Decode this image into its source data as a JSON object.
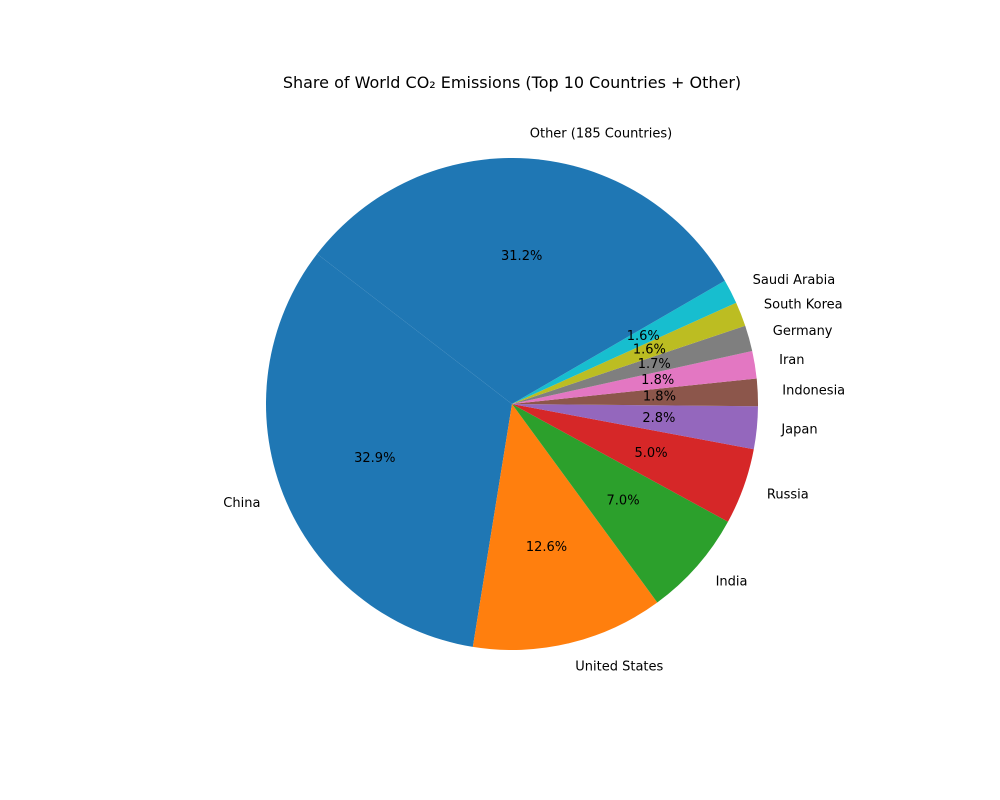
{
  "chart_data": {
    "type": "pie",
    "title": "Share of World CO₂ Emissions (Top 10 Countries + Other)",
    "start_angle_deg": 142.4,
    "direction": "counterclockwise",
    "slices": [
      {
        "label": "China",
        "value": 32.9,
        "pct_label": "32.9%",
        "color": "#1f77b4"
      },
      {
        "label": "United States",
        "value": 12.6,
        "pct_label": "12.6%",
        "color": "#ff7f0e"
      },
      {
        "label": "India",
        "value": 7.0,
        "pct_label": "7.0%",
        "color": "#2ca02c"
      },
      {
        "label": "Russia",
        "value": 5.0,
        "pct_label": "5.0%",
        "color": "#d62728"
      },
      {
        "label": "Japan",
        "value": 2.8,
        "pct_label": "2.8%",
        "color": "#9467bd"
      },
      {
        "label": "Indonesia",
        "value": 1.8,
        "pct_label": "1.8%",
        "color": "#8c564b"
      },
      {
        "label": "Iran",
        "value": 1.8,
        "pct_label": "1.8%",
        "color": "#e377c2"
      },
      {
        "label": "Germany",
        "value": 1.7,
        "pct_label": "1.7%",
        "color": "#7f7f7f"
      },
      {
        "label": "South Korea",
        "value": 1.6,
        "pct_label": "1.6%",
        "color": "#bcbd22"
      },
      {
        "label": "Saudi Arabia",
        "value": 1.6,
        "pct_label": "1.6%",
        "color": "#17becf"
      },
      {
        "label": "Other (185 Countries)",
        "value": 31.2,
        "pct_label": "31.2%",
        "color": "#1f77b4"
      }
    ]
  }
}
